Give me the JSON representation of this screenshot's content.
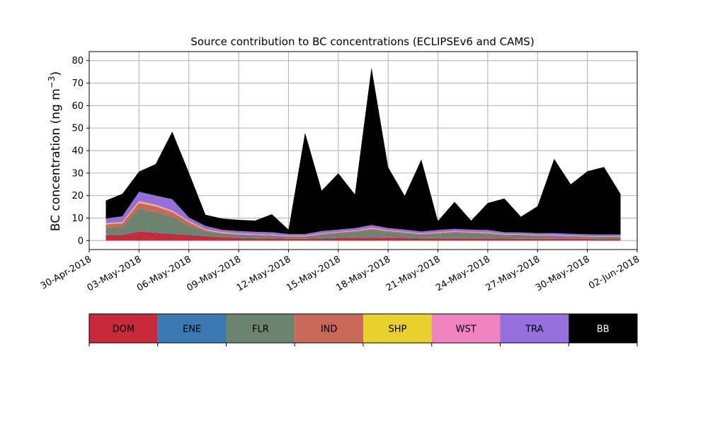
{
  "chart_data": {
    "type": "area",
    "stacked": true,
    "title": "Source contribution to BC concentrations (ECLIPSEv6 and CAMS)",
    "ylabel": "BC concentration (ng m",
    "ylabel_sup": "−3",
    "ylabel_close": ")",
    "xlabel": "",
    "ylim": [
      -4,
      84
    ],
    "yticks": [
      0,
      10,
      20,
      30,
      40,
      50,
      60,
      70,
      80
    ],
    "ytick_labels": [
      "0",
      "10",
      "20",
      "30",
      "40",
      "50",
      "60",
      "70",
      "80"
    ],
    "xlim": [
      "2018-04-30",
      "2018-06-02"
    ],
    "xticks": [
      "2018-04-30",
      "2018-05-03",
      "2018-05-06",
      "2018-05-09",
      "2018-05-12",
      "2018-05-15",
      "2018-05-18",
      "2018-05-21",
      "2018-05-24",
      "2018-05-27",
      "2018-05-30",
      "2018-06-02"
    ],
    "xtick_labels": [
      "30-Apr-2018",
      "03-May-2018",
      "06-May-2018",
      "09-May-2018",
      "12-May-2018",
      "15-May-2018",
      "18-May-2018",
      "21-May-2018",
      "24-May-2018",
      "27-May-2018",
      "30-May-2018",
      "02-Jun-2018"
    ],
    "grid": true,
    "x": [
      "2018-05-01",
      "2018-05-02",
      "2018-05-03",
      "2018-05-04",
      "2018-05-05",
      "2018-05-06",
      "2018-05-07",
      "2018-05-08",
      "2018-05-09",
      "2018-05-10",
      "2018-05-11",
      "2018-05-12",
      "2018-05-13",
      "2018-05-14",
      "2018-05-15",
      "2018-05-16",
      "2018-05-17",
      "2018-05-18",
      "2018-05-19",
      "2018-05-20",
      "2018-05-21",
      "2018-05-22",
      "2018-05-23",
      "2018-05-24",
      "2018-05-25",
      "2018-05-26",
      "2018-05-27",
      "2018-05-28",
      "2018-05-29",
      "2018-05-30",
      "2018-05-31",
      "2018-06-01"
    ],
    "series": [
      {
        "name": "DOM",
        "color": "#c62a3b",
        "values": [
          2.5,
          2.5,
          4.0,
          3.5,
          3.0,
          2.5,
          2.0,
          1.5,
          1.2,
          1.0,
          1.0,
          0.8,
          0.8,
          1.0,
          1.2,
          1.2,
          1.2,
          1.3,
          1.2,
          1.0,
          1.0,
          1.0,
          1.0,
          1.0,
          0.9,
          0.8,
          0.8,
          0.8,
          0.7,
          0.7,
          0.6,
          0.6
        ]
      },
      {
        "name": "ENE",
        "color": "#3a79b4",
        "values": [
          0.2,
          0.2,
          0.2,
          0.2,
          0.2,
          0.2,
          0.1,
          0.1,
          0.1,
          0.1,
          0.1,
          0.1,
          0.1,
          0.1,
          0.1,
          0.1,
          0.1,
          0.1,
          0.1,
          0.1,
          0.1,
          0.1,
          0.1,
          0.1,
          0.1,
          0.1,
          0.1,
          0.1,
          0.1,
          0.1,
          0.1,
          0.1
        ]
      },
      {
        "name": "FLR",
        "color": "#6e8270",
        "values": [
          3.0,
          3.5,
          10.0,
          9.0,
          7.5,
          4.0,
          2.0,
          1.5,
          1.2,
          1.2,
          1.0,
          0.8,
          0.8,
          1.5,
          2.0,
          2.5,
          3.5,
          2.5,
          2.0,
          1.5,
          2.0,
          2.5,
          2.2,
          2.0,
          1.5,
          1.5,
          1.2,
          1.2,
          1.0,
          0.8,
          0.8,
          0.8
        ]
      },
      {
        "name": "IND",
        "color": "#c9675a",
        "values": [
          1.5,
          1.5,
          2.5,
          2.5,
          2.0,
          1.5,
          0.5,
          0.3,
          0.3,
          0.3,
          0.3,
          0.2,
          0.2,
          0.3,
          0.3,
          0.4,
          0.5,
          0.4,
          0.3,
          0.3,
          0.3,
          0.3,
          0.3,
          0.3,
          0.2,
          0.2,
          0.2,
          0.2,
          0.2,
          0.2,
          0.2,
          0.2
        ]
      },
      {
        "name": "SHP",
        "color": "#e8d02e",
        "values": [
          0.3,
          0.3,
          0.5,
          0.4,
          0.3,
          0.3,
          0.2,
          0.2,
          0.2,
          0.1,
          0.1,
          0.1,
          0.1,
          0.1,
          0.1,
          0.1,
          0.2,
          0.1,
          0.1,
          0.1,
          0.1,
          0.1,
          0.1,
          0.1,
          0.1,
          0.1,
          0.1,
          0.1,
          0.1,
          0.1,
          0.1,
          0.1
        ]
      },
      {
        "name": "WST",
        "color": "#f084c0",
        "values": [
          0.3,
          0.3,
          0.5,
          0.4,
          0.4,
          0.3,
          0.2,
          0.2,
          0.2,
          0.2,
          0.2,
          0.1,
          0.1,
          0.2,
          0.2,
          0.2,
          0.2,
          0.2,
          0.2,
          0.2,
          0.2,
          0.2,
          0.2,
          0.2,
          0.1,
          0.1,
          0.1,
          0.1,
          0.1,
          0.1,
          0.1,
          0.1
        ]
      },
      {
        "name": "TRA",
        "color": "#9370db",
        "values": [
          2.0,
          2.5,
          4.0,
          4.0,
          5.0,
          1.5,
          1.5,
          1.0,
          1.0,
          1.0,
          1.0,
          0.8,
          0.8,
          1.0,
          1.0,
          1.0,
          1.2,
          1.0,
          1.0,
          0.8,
          1.0,
          1.0,
          1.0,
          1.0,
          0.8,
          0.8,
          0.8,
          0.8,
          0.8,
          0.8,
          0.8,
          0.8
        ]
      },
      {
        "name": "BB",
        "color": "#000000",
        "values": [
          8.0,
          10.0,
          9.0,
          14.0,
          30.0,
          20.0,
          5.0,
          5.0,
          5.0,
          5.0,
          8.0,
          2.0,
          45.0,
          18.0,
          25.0,
          15.0,
          70.0,
          27.0,
          15.0,
          32.0,
          4.0,
          12.0,
          4.0,
          12.0,
          15.0,
          7.0,
          12.0,
          33.0,
          22.0,
          28.0,
          30.0,
          18.0
        ]
      }
    ]
  }
}
